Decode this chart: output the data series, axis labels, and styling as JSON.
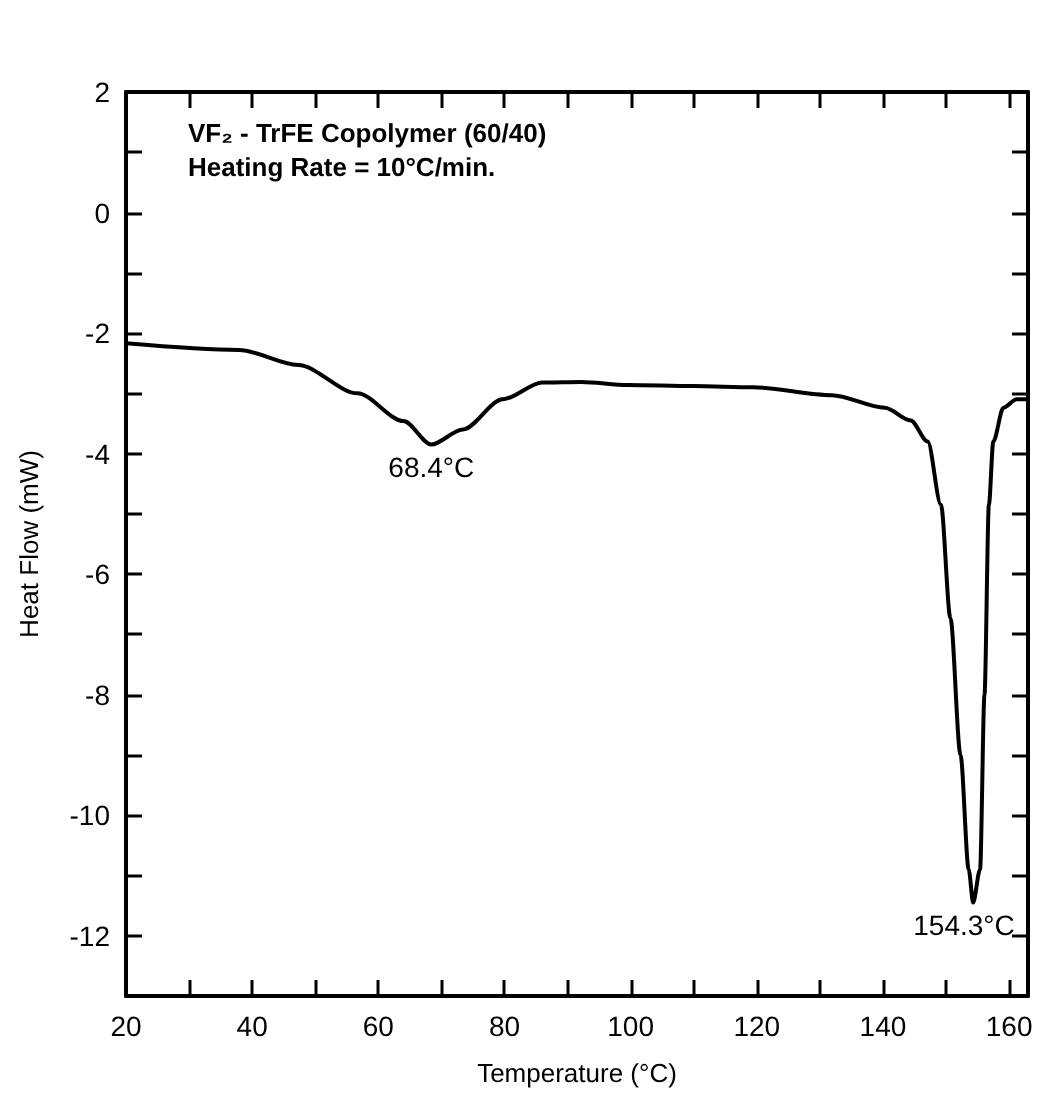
{
  "chart_data": {
    "type": "line",
    "title": "VF₂ - TrFE Copolymer (60/40)",
    "subtitle": "Heating Rate = 10°C/min.",
    "xlabel": "Temperature (°C)",
    "ylabel": "Heat Flow (mW)",
    "x": [
      20,
      37.9,
      47.3,
      56.7,
      64,
      68.4,
      73.4,
      79.7,
      86,
      92.2,
      99.5,
      110,
      119.4,
      131.9,
      140.3,
      144.4,
      147.1,
      149.2,
      150.7,
      152.3,
      153.6,
      154.3,
      155.4,
      156.1,
      156.8,
      157.5,
      159.1,
      161.2,
      163
    ],
    "series": [
      {
        "color": "#000000",
        "values": [
          -2.17,
          -2.28,
          -2.53,
          -3.0,
          -3.46,
          -3.85,
          -3.6,
          -3.1,
          -2.82,
          -2.81,
          -2.86,
          -2.88,
          -2.9,
          -3.03,
          -3.24,
          -3.45,
          -3.8,
          -4.85,
          -6.73,
          -9.0,
          -10.9,
          -11.45,
          -10.9,
          -8.0,
          -4.85,
          -3.8,
          -3.24,
          -3.1,
          -3.1
        ]
      }
    ],
    "xlim": [
      20,
      163
    ],
    "ylim": [
      -13,
      2
    ],
    "xticks": [
      20,
      {
        "value": 30,
        "label": null
      },
      40,
      {
        "value": 50,
        "label": null
      },
      60,
      {
        "value": 70,
        "label": null
      },
      80,
      {
        "value": 90,
        "label": null
      },
      100,
      {
        "value": 110,
        "label": null
      },
      120,
      {
        "value": 130,
        "label": null
      },
      140,
      {
        "value": 150,
        "label": null
      },
      160
    ],
    "yticks": [
      -12,
      {
        "value": -11,
        "label": null
      },
      -10,
      {
        "value": -9,
        "label": null
      },
      -8,
      {
        "value": -7,
        "label": null
      },
      -6,
      {
        "value": -5,
        "label": null
      },
      -4,
      {
        "value": -3,
        "label": null
      },
      -2,
      {
        "value": -1,
        "label": null
      },
      0,
      {
        "value": 1,
        "label": null
      },
      2
    ],
    "annotations": [
      {
        "text": "68.4°C",
        "x": 68.4,
        "y": -3.85
      },
      {
        "text": "154.3°C",
        "x": 154.3,
        "y": -11.45
      }
    ],
    "grid": false,
    "marker": "none",
    "line_style": "solid"
  }
}
